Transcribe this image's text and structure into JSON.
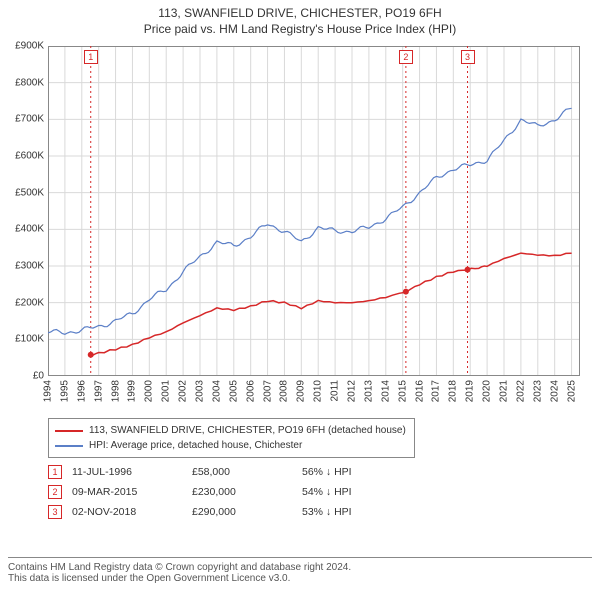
{
  "title_line1": "113, SWANFIELD DRIVE, CHICHESTER, PO19 6FH",
  "title_line2": "Price paid vs. HM Land Registry's House Price Index (HPI)",
  "chart": {
    "type": "line",
    "background_color": "#ffffff",
    "plot_bg": "#ffffff",
    "grid_color": "#d9d9d9",
    "axis_color": "#888888",
    "ylim": [
      0,
      900000
    ],
    "ytick_step": 100000,
    "ytick_labels": [
      "£0",
      "£100K",
      "£200K",
      "£300K",
      "£400K",
      "£500K",
      "£600K",
      "£700K",
      "£800K",
      "£900K"
    ],
    "xlim": [
      1994,
      2025.5
    ],
    "xtick_years": [
      1994,
      1995,
      1996,
      1997,
      1998,
      1999,
      2000,
      2001,
      2002,
      2003,
      2004,
      2005,
      2006,
      2007,
      2008,
      2009,
      2010,
      2011,
      2012,
      2013,
      2014,
      2015,
      2016,
      2017,
      2018,
      2019,
      2020,
      2021,
      2022,
      2023,
      2024,
      2025
    ],
    "series": [
      {
        "name": "price_paid",
        "color": "#d62728",
        "line_width": 1.5,
        "points": [
          [
            1996.53,
            58000
          ],
          [
            1997,
            62000
          ],
          [
            1998,
            73000
          ],
          [
            1999,
            85000
          ],
          [
            2000,
            105000
          ],
          [
            2001,
            120000
          ],
          [
            2002,
            145000
          ],
          [
            2003,
            165000
          ],
          [
            2004,
            185000
          ],
          [
            2005,
            180000
          ],
          [
            2006,
            190000
          ],
          [
            2007,
            205000
          ],
          [
            2008,
            200000
          ],
          [
            2009,
            185000
          ],
          [
            2010,
            205000
          ],
          [
            2011,
            200000
          ],
          [
            2012,
            200000
          ],
          [
            2013,
            205000
          ],
          [
            2014,
            215000
          ],
          [
            2015.19,
            230000
          ],
          [
            2016,
            250000
          ],
          [
            2017,
            270000
          ],
          [
            2018,
            285000
          ],
          [
            2018.84,
            290000
          ],
          [
            2019.5,
            295000
          ],
          [
            2020,
            300000
          ],
          [
            2021,
            320000
          ],
          [
            2022,
            335000
          ],
          [
            2023,
            330000
          ],
          [
            2024,
            328000
          ],
          [
            2025,
            335000
          ]
        ],
        "dots": [
          [
            1996.53,
            58000
          ],
          [
            2015.19,
            230000
          ],
          [
            2018.84,
            290000
          ]
        ]
      },
      {
        "name": "hpi",
        "color": "#5b7fc7",
        "line_width": 1.2,
        "points": [
          [
            1994,
            120000
          ],
          [
            1995,
            118000
          ],
          [
            1996,
            125000
          ],
          [
            1997,
            135000
          ],
          [
            1998,
            150000
          ],
          [
            1999,
            170000
          ],
          [
            2000,
            210000
          ],
          [
            2001,
            235000
          ],
          [
            2002,
            285000
          ],
          [
            2003,
            325000
          ],
          [
            2004,
            365000
          ],
          [
            2005,
            355000
          ],
          [
            2006,
            380000
          ],
          [
            2007,
            415000
          ],
          [
            2008,
            395000
          ],
          [
            2009,
            365000
          ],
          [
            2010,
            405000
          ],
          [
            2011,
            395000
          ],
          [
            2012,
            395000
          ],
          [
            2013,
            405000
          ],
          [
            2014,
            430000
          ],
          [
            2015,
            460000
          ],
          [
            2016,
            500000
          ],
          [
            2017,
            540000
          ],
          [
            2018,
            565000
          ],
          [
            2019,
            575000
          ],
          [
            2020,
            590000
          ],
          [
            2021,
            640000
          ],
          [
            2022,
            700000
          ],
          [
            2023,
            680000
          ],
          [
            2024,
            700000
          ],
          [
            2025,
            730000
          ]
        ]
      }
    ],
    "markers": [
      {
        "label": "1",
        "x": 1996.53,
        "color": "#d62728"
      },
      {
        "label": "2",
        "x": 2015.19,
        "color": "#d62728"
      },
      {
        "label": "3",
        "x": 2018.84,
        "color": "#d62728"
      }
    ]
  },
  "legend": [
    {
      "color": "#d62728",
      "label": "113, SWANFIELD DRIVE, CHICHESTER, PO19 6FH (detached house)"
    },
    {
      "color": "#5b7fc7",
      "label": "HPI: Average price, detached house, Chichester"
    }
  ],
  "events": [
    {
      "n": "1",
      "color": "#d62728",
      "date": "11-JUL-1996",
      "price": "£58,000",
      "delta": "56% ↓ HPI"
    },
    {
      "n": "2",
      "color": "#d62728",
      "date": "09-MAR-2015",
      "price": "£230,000",
      "delta": "54% ↓ HPI"
    },
    {
      "n": "3",
      "color": "#d62728",
      "date": "02-NOV-2018",
      "price": "£290,000",
      "delta": "53% ↓ HPI"
    }
  ],
  "footer_line1": "Contains HM Land Registry data © Crown copyright and database right 2024.",
  "footer_line2": "This data is licensed under the Open Government Licence v3.0."
}
